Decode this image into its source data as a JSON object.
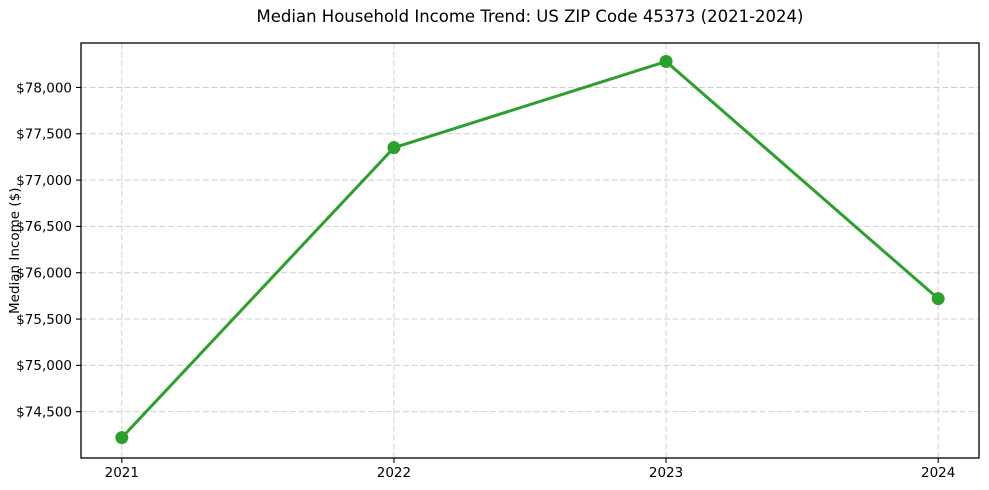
{
  "chart_data": {
    "type": "line",
    "title": "Median Household Income Trend: US ZIP Code 45373 (2021-2024)",
    "xlabel": "",
    "ylabel": "Median Income ($)",
    "x": [
      2021,
      2022,
      2023,
      2024
    ],
    "series": [
      {
        "name": "Median Household Income",
        "values": [
          74220,
          77350,
          78280,
          75720
        ]
      }
    ],
    "xticks": [
      {
        "value": 2021,
        "label": "2021"
      },
      {
        "value": 2022,
        "label": "2022"
      },
      {
        "value": 2023,
        "label": "2023"
      },
      {
        "value": 2024,
        "label": "2024"
      }
    ],
    "yticks": [
      {
        "value": 74500,
        "label": "$74,500"
      },
      {
        "value": 75000,
        "label": "$75,000"
      },
      {
        "value": 75500,
        "label": "$75,500"
      },
      {
        "value": 76000,
        "label": "$76,000"
      },
      {
        "value": 76500,
        "label": "$76,500"
      },
      {
        "value": 77000,
        "label": "$77,000"
      },
      {
        "value": 77500,
        "label": "$77,500"
      },
      {
        "value": 78000,
        "label": "$78,000"
      }
    ],
    "xlim": [
      2020.85,
      2024.15
    ],
    "ylim": [
      74000,
      78480
    ],
    "grid": true,
    "grid_style": "dashed",
    "legend_position": "none",
    "colors": {
      "line": "#2ca02c",
      "marker": "#2ca02c",
      "grid": "#cfcfcf",
      "axis": "#000000",
      "text": "#000000",
      "background": "#ffffff"
    }
  }
}
